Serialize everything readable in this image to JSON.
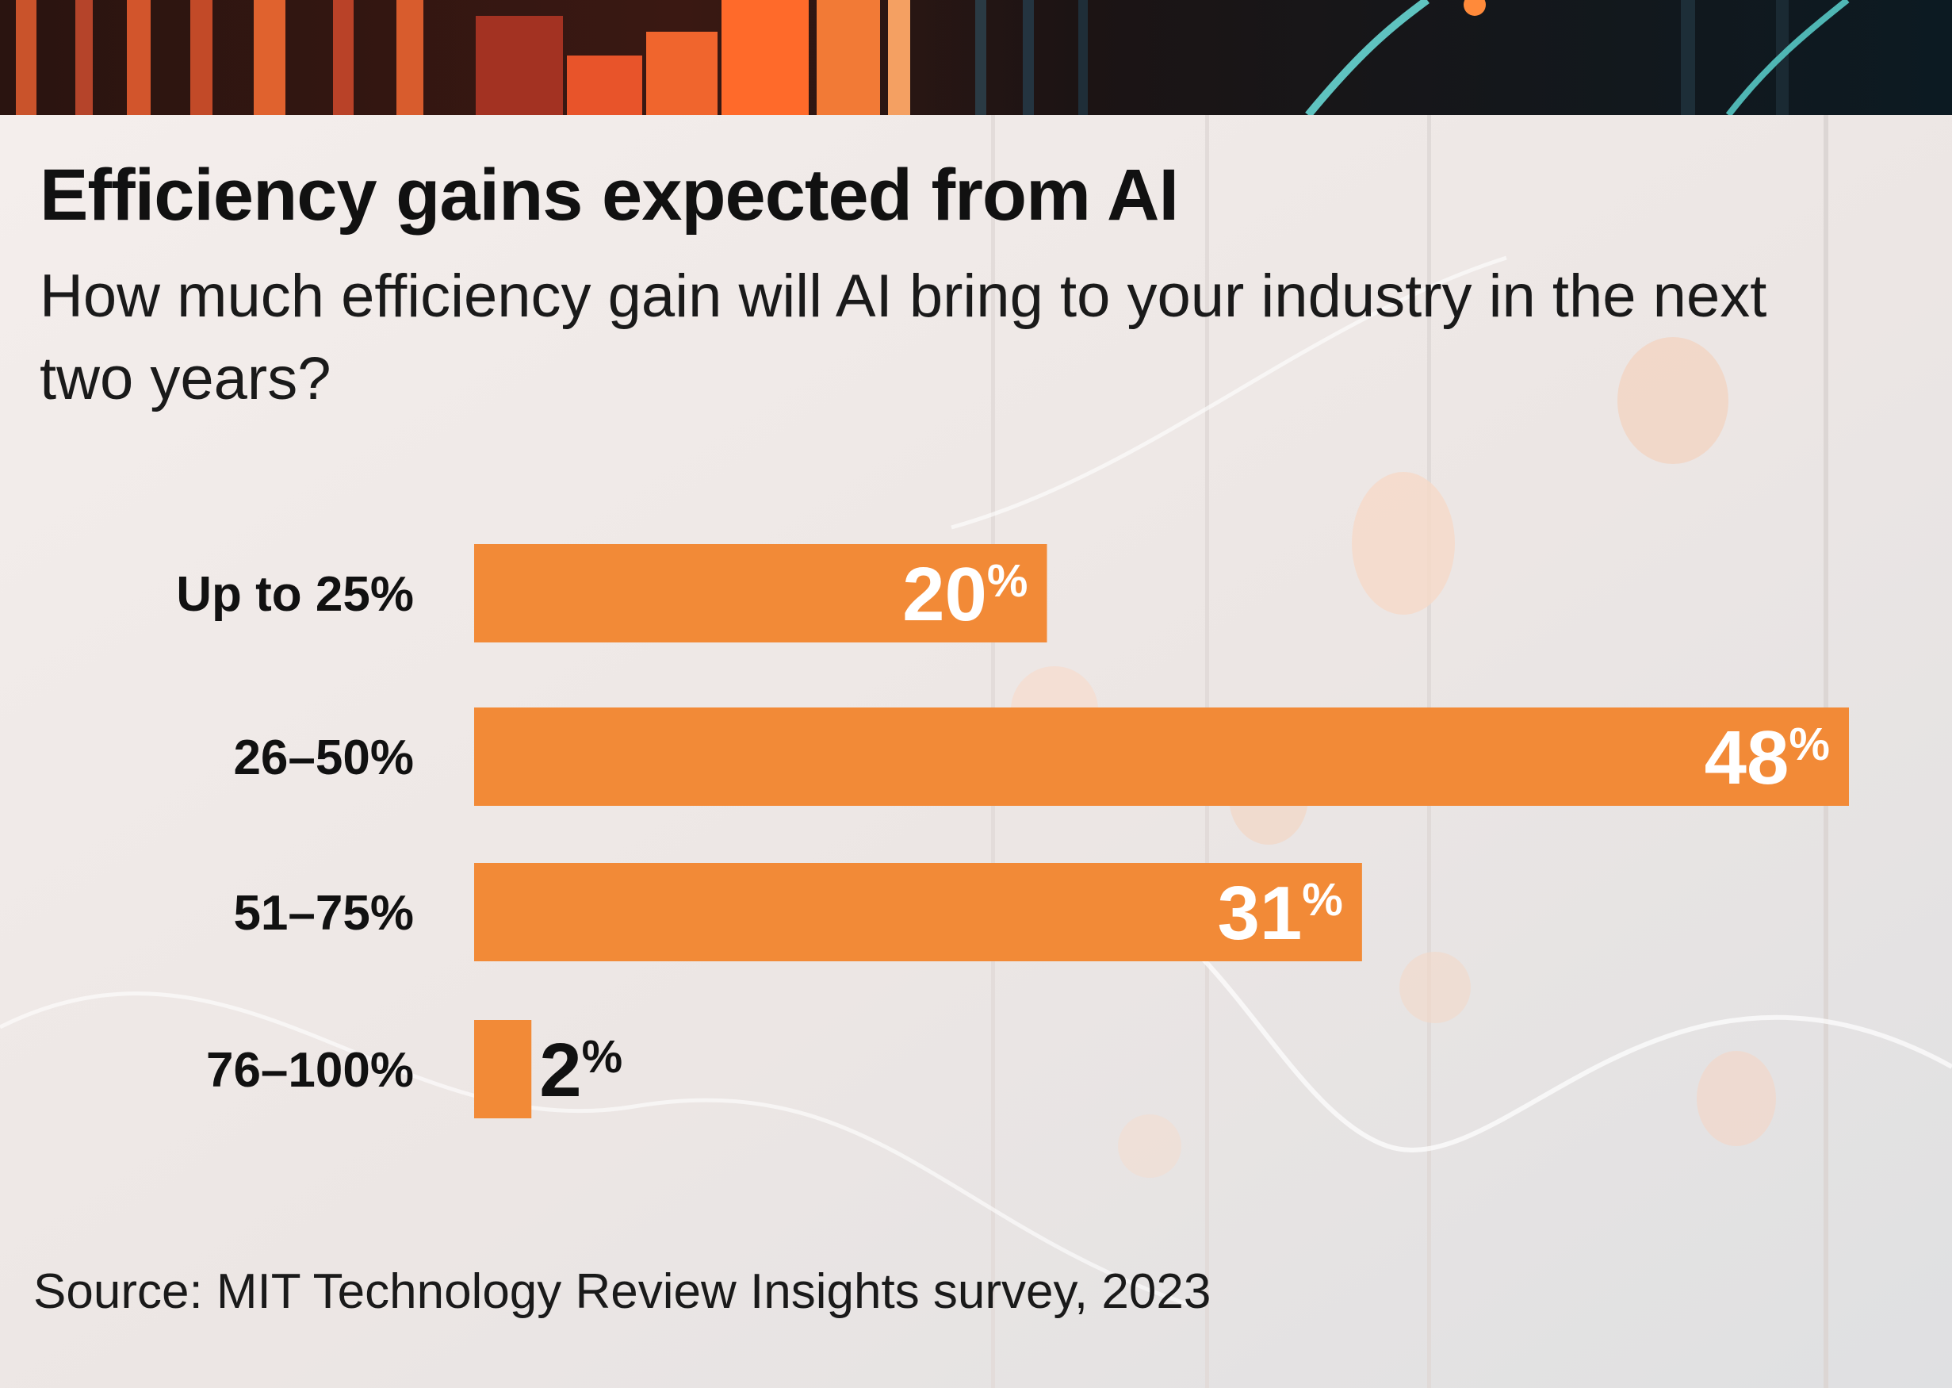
{
  "title": "Efficiency gains expected from AI",
  "subtitle": "How much efficiency gain will AI bring to your industry in the next two years?",
  "source": "Source: MIT Technology Review Insights survey, 2023",
  "colors": {
    "bar": "#f28a37",
    "value_inside": "#ffffff",
    "value_outside": "#111111"
  },
  "chart_data": {
    "type": "bar",
    "orientation": "horizontal",
    "categories": [
      "Up to 25%",
      "26–50%",
      "51–75%",
      "76–100%"
    ],
    "values": [
      20,
      48,
      31,
      2
    ],
    "value_labels": [
      "20",
      "48",
      "31",
      "2"
    ],
    "value_suffix": "%",
    "xlim": [
      0,
      50
    ],
    "grid": false,
    "legend": "none"
  }
}
